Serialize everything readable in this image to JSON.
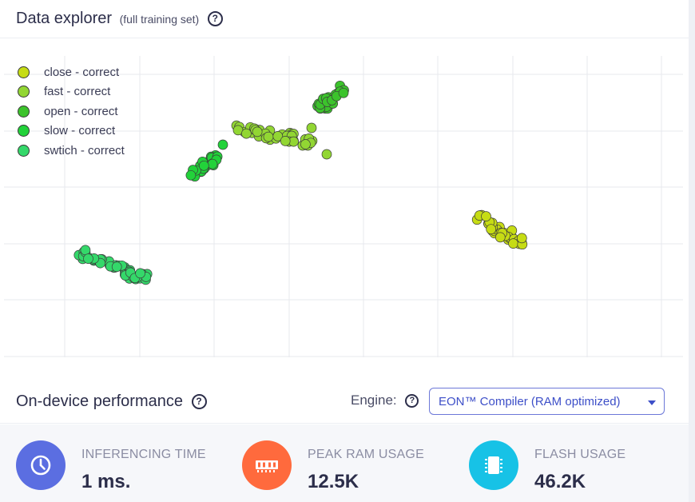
{
  "explorer": {
    "title": "Data explorer",
    "subtitle": "(full training set)",
    "help_icon": "?"
  },
  "legend": [
    {
      "label": "close - correct",
      "color": "#c6dc14"
    },
    {
      "label": "fast - correct",
      "color": "#92d633"
    },
    {
      "label": "open - correct",
      "color": "#3cc32c"
    },
    {
      "label": "slow - correct",
      "color": "#22d23a"
    },
    {
      "label": "swtich - correct",
      "color": "#34d86a"
    }
  ],
  "performance": {
    "title": "On-device performance",
    "help_icon": "?",
    "engine_label": "Engine:",
    "engine_help_icon": "?",
    "engine_value": "EON™ Compiler (RAM optimized)"
  },
  "metrics": [
    {
      "label": "INFERENCING TIME",
      "value": "1 ms.",
      "icon": "clock-icon",
      "color": "#5b6ee1"
    },
    {
      "label": "PEAK RAM USAGE",
      "value": "12.5K",
      "icon": "memory-chip-icon",
      "color": "#ff6a3d"
    },
    {
      "label": "FLASH USAGE",
      "value": "46.2K",
      "icon": "flash-chip-icon",
      "color": "#17c2e6"
    }
  ]
}
